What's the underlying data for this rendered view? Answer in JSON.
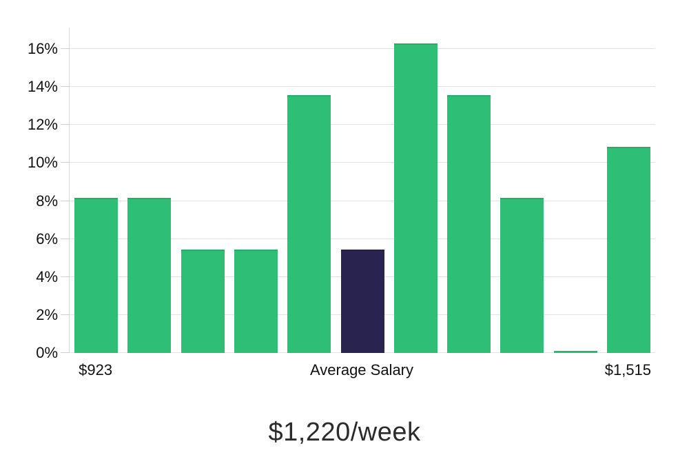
{
  "chart_data": {
    "type": "bar",
    "title": "$1,220/week",
    "xlabel": "",
    "ylabel": "",
    "unit": "%",
    "values": [
      8.15,
      8.15,
      5.43,
      5.43,
      13.59,
      5.43,
      16.3,
      13.59,
      8.15,
      0.1,
      10.87
    ],
    "highlight_index": 5,
    "x_axis_labels": [
      {
        "text": "$923",
        "slot": 0
      },
      {
        "text": "Average Salary",
        "slot": 5
      },
      {
        "text": "$1,515",
        "slot": 10
      }
    ],
    "y_ticks": [
      {
        "label": "0%",
        "value": 0
      },
      {
        "label": "2%",
        "value": 2
      },
      {
        "label": "4%",
        "value": 4
      },
      {
        "label": "6%",
        "value": 6
      },
      {
        "label": "8%",
        "value": 8
      },
      {
        "label": "10%",
        "value": 10
      },
      {
        "label": "12%",
        "value": 12
      },
      {
        "label": "14%",
        "value": 14
      },
      {
        "label": "16%",
        "value": 16
      }
    ],
    "ylim": [
      0,
      17.13
    ],
    "grid": true,
    "legend_position": "none",
    "colors": {
      "bar": "#2FBE76",
      "highlight": "#292350",
      "grid": "#e3e3e3",
      "axis": "#d8d8d8",
      "tick_text": "#111111",
      "title_text": "#2b2b2b"
    }
  }
}
